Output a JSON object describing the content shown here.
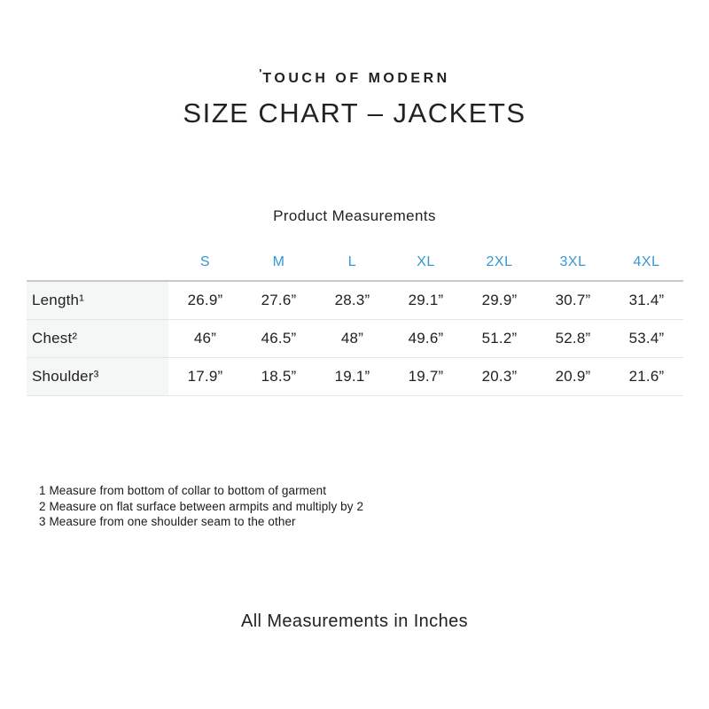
{
  "brand": {
    "logo_mark": "'",
    "logo_text": "TOUCH OF MODERN"
  },
  "page_title": "SIZE CHART – JACKETS",
  "measurements": {
    "title": "Product Measurements",
    "size_headers": [
      "S",
      "M",
      "L",
      "XL",
      "2XL",
      "3XL",
      "4XL"
    ],
    "rows": [
      {
        "label": "Length¹",
        "values": [
          "26.9”",
          "27.6”",
          "28.3”",
          "29.1”",
          "29.9”",
          "30.7”",
          "31.4”"
        ]
      },
      {
        "label": "Chest²",
        "values": [
          "46”",
          "46.5”",
          "48”",
          "49.6”",
          "51.2”",
          "52.8”",
          "53.4”"
        ]
      },
      {
        "label": "Shoulder³",
        "values": [
          "17.9”",
          "18.5”",
          "19.1”",
          "19.7”",
          "20.3”",
          "20.9”",
          "21.6”"
        ]
      }
    ]
  },
  "footnotes": [
    "1 Measure from bottom of collar to bottom of garment",
    "2 Measure on flat surface between armpits and multiply by 2",
    "3 Measure from one shoulder seam to the other"
  ],
  "footer_note": "All Measurements in Inches",
  "colors": {
    "size_header_blue": "#3598d4",
    "row_label_background": "#f5f6f6",
    "divider": "#e5e5e5",
    "header_divider": "#c9c9c9",
    "text": "#222222"
  },
  "chart_data": {
    "type": "table",
    "title": "Product Measurements",
    "units": "inches",
    "columns": [
      "S",
      "M",
      "L",
      "XL",
      "2XL",
      "3XL",
      "4XL"
    ],
    "rows": [
      {
        "label": "Length",
        "footnote": "1",
        "values": [
          26.9,
          27.6,
          28.3,
          29.1,
          29.9,
          30.7,
          31.4
        ]
      },
      {
        "label": "Chest",
        "footnote": "2",
        "values": [
          46,
          46.5,
          48,
          49.6,
          51.2,
          52.8,
          53.4
        ]
      },
      {
        "label": "Shoulder",
        "footnote": "3",
        "values": [
          17.9,
          18.5,
          19.1,
          19.7,
          20.3,
          20.9,
          21.6
        ]
      }
    ],
    "footnotes": [
      "1 Measure from bottom of collar to bottom of garment",
      "2 Measure on flat surface between armpits and multiply by 2",
      "3 Measure from one shoulder seam to the other"
    ]
  }
}
